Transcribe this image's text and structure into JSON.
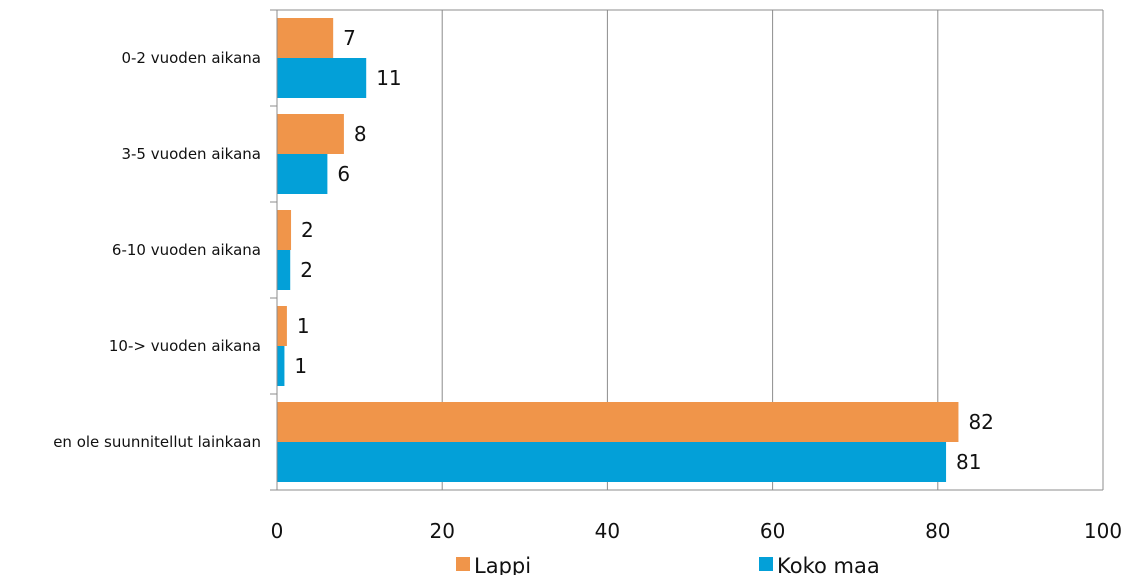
{
  "chart_data": {
    "type": "bar",
    "orientation": "horizontal",
    "categories": [
      "0-2 vuoden aikana",
      "3-5 vuoden aikana",
      "6-10 vuoden aikana",
      "10-> vuoden aikana",
      "en ole suunnitellut  lainkaan"
    ],
    "series": [
      {
        "name": "Lappi",
        "color": "#F0954A",
        "values": [
          6.8,
          8.1,
          1.7,
          1.2,
          82.5
        ],
        "labels": [
          "7",
          "8",
          "2",
          "1",
          "82"
        ]
      },
      {
        "name": "Koko maa",
        "color": "#03A0D8",
        "values": [
          10.8,
          6.1,
          1.6,
          0.9,
          81.0
        ],
        "labels": [
          "11",
          "6",
          "2",
          "1",
          "81"
        ]
      }
    ],
    "xlim": [
      0,
      100
    ],
    "xticks": [
      0,
      20,
      40,
      60,
      80,
      100
    ],
    "xtick_labels": [
      "0",
      "20",
      "40",
      "60",
      "80",
      "100"
    ],
    "grid": "vertical",
    "legend_position": "bottom"
  }
}
